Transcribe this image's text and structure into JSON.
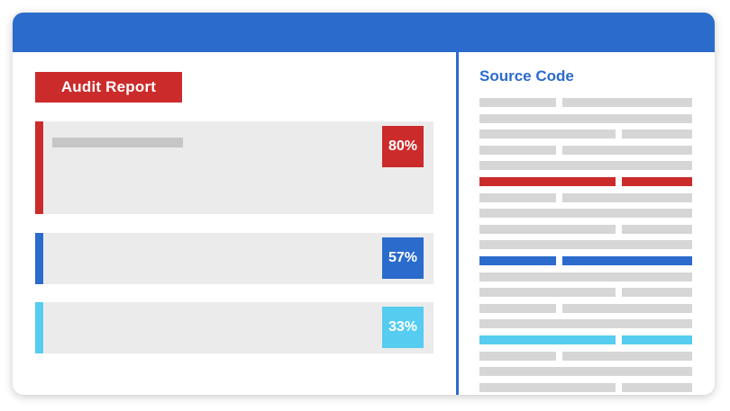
{
  "colors": {
    "primary_blue": "#2b6bcc",
    "critical_red": "#cc2b2b",
    "info_cyan": "#55ccf0",
    "placeholder_gray": "#d6d6d6",
    "panel_gray": "#ebebeb"
  },
  "audit_report": {
    "title": "Audit Report",
    "findings": [
      {
        "percent": "80%",
        "severity_color": "#cc2b2b"
      },
      {
        "percent": "57%",
        "severity_color": "#2b6bcc"
      },
      {
        "percent": "33%",
        "severity_color": "#55ccf0"
      }
    ]
  },
  "source_code": {
    "title": "Source Code",
    "highlighted_lines": [
      {
        "line": 5,
        "color": "#cc2b2b"
      },
      {
        "line": 10,
        "color": "#2b6bcc"
      },
      {
        "line": 15,
        "color": "#55ccf0"
      }
    ]
  }
}
